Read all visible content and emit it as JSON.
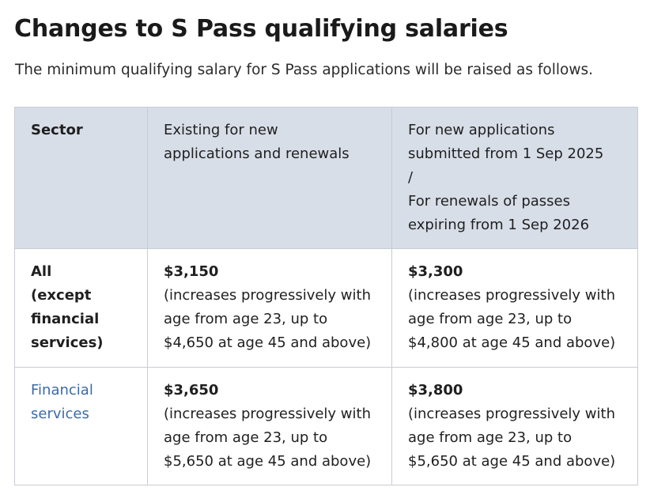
{
  "page": {
    "title": "Changes to S Pass qualifying salaries",
    "intro": "The minimum qualifying salary for S Pass applications will be raised as follows."
  },
  "table": {
    "headers": {
      "sector": "Sector",
      "existing_line1": "Existing for new",
      "existing_line2": "applications and renewals",
      "new_line1": "For new applications",
      "new_line2": "submitted from 1 Sep 2025",
      "new_line3": "/",
      "new_line4": "For renewals of passes",
      "new_line5": "expiring from 1 Sep 2026"
    },
    "rows": [
      {
        "sector_lines": [
          "All",
          "(except",
          "financial",
          "services)"
        ],
        "existing_amount": "$3,150",
        "existing_note_lines": [
          "(increases progressively with",
          "age from age 23, up to",
          "$4,650 at age 45 and above)"
        ],
        "new_amount": "$3,300",
        "new_note_lines": [
          "(increases progressively with",
          "age from age 23, up to",
          "$4,800 at age 45 and above)"
        ]
      },
      {
        "sector_lines": [
          "Financial",
          "services"
        ],
        "existing_amount": "$3,650",
        "existing_note_lines": [
          "(increases progressively with",
          "age from age 23, up to",
          "$5,650 at age 45 and above)"
        ],
        "new_amount": "$3,800",
        "new_note_lines": [
          "(increases progressively with",
          "age from age 23, up to",
          "$5,650 at age 45 and above)"
        ]
      }
    ]
  },
  "colors": {
    "header_background": "#d8dee8",
    "link": "#3c6aa8",
    "border": "#c8ccd2",
    "text": "#1a1a1a"
  }
}
